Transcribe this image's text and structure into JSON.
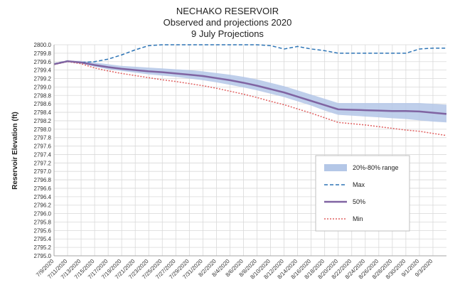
{
  "chart_data": {
    "type": "line",
    "title": [
      "NECHAKO RESERVOIR",
      "Observed and projections 2020",
      "9 July Projections"
    ],
    "ylabel": "Reservoir Elevation (ft)",
    "xlabel": "",
    "ylim": [
      2795.0,
      2800.0
    ],
    "yticks": [
      "2795.0",
      "2795.2",
      "2795.4",
      "2795.6",
      "2795.8",
      "2796.0",
      "2796.2",
      "2796.4",
      "2796.6",
      "2796.8",
      "2797.0",
      "2797.2",
      "2797.4",
      "2797.6",
      "2797.8",
      "2798.0",
      "2798.2",
      "2798.4",
      "2798.6",
      "2798.8",
      "2799.0",
      "2799.2",
      "2799.4",
      "2799.6",
      "2799.8",
      "2800.0"
    ],
    "xticks": [
      "7/9/2020",
      "7/11/2020",
      "7/13/2020",
      "7/15/2020",
      "7/17/2020",
      "7/19/2020",
      "7/21/2020",
      "7/23/2020",
      "7/25/2020",
      "7/27/2020",
      "7/29/2020",
      "7/31/2020",
      "8/2/2020",
      "8/4/2020",
      "8/6/2020",
      "8/8/2020",
      "8/10/2020",
      "8/12/2020",
      "8/14/2020",
      "8/16/2020",
      "8/18/2020",
      "8/20/2020",
      "8/22/2020",
      "8/24/2020",
      "8/26/2020",
      "8/28/2020",
      "8/30/2020",
      "9/1/2020",
      "9/3/2020"
    ],
    "x": [
      "7/9/2020",
      "7/11/2020",
      "7/13/2020",
      "7/15/2020",
      "7/17/2020",
      "7/19/2020",
      "7/21/2020",
      "7/23/2020",
      "7/25/2020",
      "7/27/2020",
      "7/29/2020",
      "7/31/2020",
      "8/2/2020",
      "8/4/2020",
      "8/6/2020",
      "8/8/2020",
      "8/10/2020",
      "8/12/2020",
      "8/14/2020",
      "8/16/2020",
      "8/18/2020",
      "8/20/2020",
      "8/22/2020",
      "8/24/2020",
      "8/26/2020",
      "8/28/2020",
      "8/30/2020",
      "9/1/2020",
      "9/3/2020",
      "9/4/2020"
    ],
    "band": {
      "name": "20%-80% range",
      "color": "#b4c7e7",
      "low": [
        2799.53,
        2799.6,
        2799.56,
        2799.48,
        2799.42,
        2799.38,
        2799.34,
        2799.3,
        2799.27,
        2799.24,
        2799.2,
        2799.16,
        2799.11,
        2799.05,
        2798.99,
        2798.92,
        2798.84,
        2798.76,
        2798.66,
        2798.56,
        2798.44,
        2798.34,
        2798.32,
        2798.3,
        2798.28,
        2798.26,
        2798.24,
        2798.21,
        2798.18,
        2798.16
      ],
      "high": [
        2799.55,
        2799.62,
        2799.62,
        2799.58,
        2799.54,
        2799.5,
        2799.48,
        2799.46,
        2799.44,
        2799.42,
        2799.4,
        2799.37,
        2799.33,
        2799.29,
        2799.24,
        2799.18,
        2799.1,
        2799.02,
        2798.92,
        2798.82,
        2798.72,
        2798.62,
        2798.62,
        2798.62,
        2798.62,
        2798.62,
        2798.62,
        2798.62,
        2798.6,
        2798.58
      ]
    },
    "series": [
      {
        "name": "Max",
        "color": "#2e75b6",
        "style": "dashed",
        "values": [
          2799.55,
          2799.62,
          2799.58,
          2799.6,
          2799.66,
          2799.76,
          2799.88,
          2799.98,
          2800.0,
          2800.0,
          2800.0,
          2800.0,
          2800.0,
          2800.0,
          2800.0,
          2800.0,
          2799.98,
          2799.9,
          2799.96,
          2799.9,
          2799.86,
          2799.8,
          2799.8,
          2799.8,
          2799.8,
          2799.8,
          2799.8,
          2799.9,
          2799.92,
          2799.92
        ]
      },
      {
        "name": "50%",
        "color": "#8064a2",
        "style": "solid",
        "values": [
          2799.54,
          2799.61,
          2799.58,
          2799.52,
          2799.47,
          2799.43,
          2799.4,
          2799.37,
          2799.35,
          2799.32,
          2799.29,
          2799.26,
          2799.21,
          2799.16,
          2799.1,
          2799.03,
          2798.95,
          2798.87,
          2798.77,
          2798.67,
          2798.57,
          2798.47,
          2798.46,
          2798.45,
          2798.44,
          2798.43,
          2798.43,
          2798.42,
          2798.39,
          2798.36
        ]
      },
      {
        "name": "Min",
        "color": "#e06060",
        "style": "dotted",
        "values": [
          2799.53,
          2799.6,
          2799.55,
          2799.45,
          2799.38,
          2799.32,
          2799.27,
          2799.22,
          2799.17,
          2799.13,
          2799.08,
          2799.03,
          2798.97,
          2798.9,
          2798.83,
          2798.75,
          2798.66,
          2798.58,
          2798.48,
          2798.38,
          2798.27,
          2798.16,
          2798.13,
          2798.1,
          2798.06,
          2798.02,
          2797.98,
          2797.95,
          2797.9,
          2797.85
        ]
      }
    ],
    "grid": true,
    "legend": {
      "placement": "center-right",
      "items": [
        "20%-80% range",
        "Max",
        "50%",
        "Min"
      ]
    }
  }
}
